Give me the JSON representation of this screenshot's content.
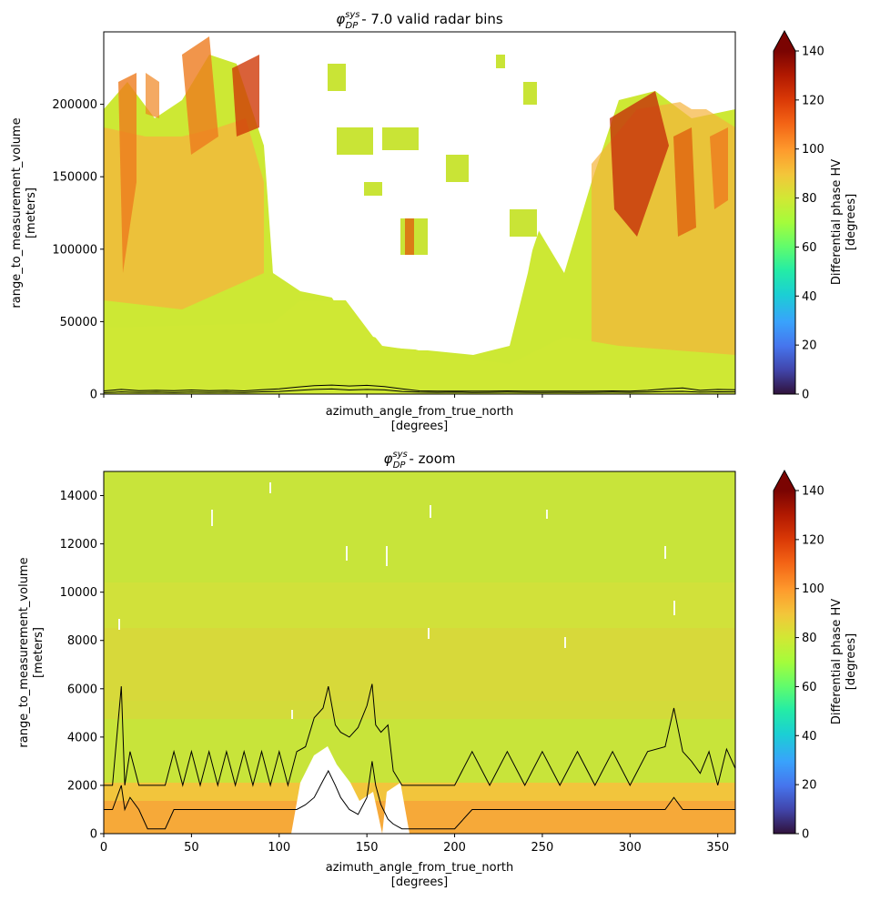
{
  "chart_data": [
    {
      "type": "heatmap",
      "title": "- 7.0 valid radar bins",
      "title_symbol": {
        "base": "φ",
        "sup": "sys",
        "sub": "DP"
      },
      "xlabel": "azimuth_angle_from_true_north",
      "xunits": "[degrees]",
      "ylabel": "range_to_measurement_volume",
      "yunits": "[meters]",
      "xlim": [
        0,
        360
      ],
      "ylim": [
        0,
        250000
      ],
      "xticks": [],
      "yticks": [
        0,
        50000,
        100000,
        150000,
        200000
      ],
      "colorbar": {
        "label": "Differential phase HV",
        "units": "[degrees]",
        "ticks": [
          0,
          20,
          40,
          60,
          80,
          100,
          120,
          140
        ],
        "range": [
          0,
          140
        ],
        "colormap": "turbo",
        "extend": "max"
      },
      "series": [
        {
          "x": [
            0,
            10,
            20,
            30,
            40,
            50,
            60,
            70,
            80,
            90,
            100,
            110,
            120,
            130,
            140,
            150,
            160,
            170,
            180,
            190,
            200,
            210,
            220,
            230,
            240,
            250,
            260,
            270,
            280,
            290,
            300,
            310,
            320,
            330,
            340,
            350,
            360
          ],
          "y": [
            1000,
            1500,
            1200,
            1300,
            1100,
            1400,
            1200,
            1300,
            1100,
            1600,
            1800,
            2500,
            3200,
            3500,
            2800,
            3200,
            2900,
            1800,
            1300,
            1200,
            1300,
            1100,
            1200,
            1300,
            1200,
            1100,
            1200,
            1100,
            1200,
            1300,
            1200,
            1400,
            1800,
            1900,
            1300,
            1600,
            1500
          ]
        },
        {
          "x": [
            0,
            10,
            20,
            30,
            40,
            50,
            60,
            70,
            80,
            90,
            100,
            110,
            120,
            130,
            140,
            150,
            160,
            170,
            180,
            190,
            200,
            210,
            220,
            230,
            240,
            250,
            260,
            270,
            280,
            290,
            300,
            310,
            320,
            330,
            340,
            350,
            360
          ],
          "y": [
            2200,
            3200,
            2400,
            2600,
            2300,
            2800,
            2400,
            2600,
            2200,
            3000,
            3600,
            4800,
            5800,
            6200,
            5600,
            6000,
            5200,
            3600,
            2200,
            2000,
            2100,
            2000,
            2100,
            2200,
            2100,
            2000,
            2100,
            2000,
            2100,
            2200,
            2000,
            2600,
            3600,
            4200,
            2600,
            3200,
            3000
          ]
        }
      ]
    },
    {
      "type": "heatmap",
      "title": "- zoom",
      "title_symbol": {
        "base": "φ",
        "sup": "sys",
        "sub": "DP"
      },
      "xlabel": "azimuth_angle_from_true_north",
      "xunits": "[degrees]",
      "ylabel": "range_to_measurement_volume",
      "yunits": "[meters]",
      "xlim": [
        0,
        360
      ],
      "ylim": [
        0,
        15000
      ],
      "xticks": [
        0,
        50,
        100,
        150,
        200,
        250,
        300,
        350
      ],
      "yticks": [
        0,
        2000,
        4000,
        6000,
        8000,
        10000,
        12000,
        14000
      ],
      "colorbar": {
        "label": "Differential phase HV",
        "units": "[degrees]",
        "ticks": [
          0,
          20,
          40,
          60,
          80,
          100,
          120,
          140
        ],
        "range": [
          0,
          140
        ],
        "colormap": "turbo",
        "extend": "max"
      },
      "series": [
        {
          "x": [
            0,
            5,
            10,
            12,
            15,
            20,
            25,
            30,
            35,
            40,
            45,
            50,
            55,
            60,
            65,
            70,
            75,
            80,
            85,
            90,
            95,
            100,
            105,
            110,
            115,
            120,
            125,
            128,
            132,
            135,
            140,
            145,
            150,
            153,
            155,
            158,
            162,
            165,
            170,
            175,
            180,
            190,
            200,
            210,
            220,
            230,
            240,
            250,
            260,
            270,
            280,
            290,
            300,
            310,
            320,
            325,
            330,
            335,
            340,
            345,
            350,
            355,
            360
          ],
          "y": [
            1000,
            1000,
            2000,
            1000,
            1500,
            1000,
            200,
            200,
            200,
            1000,
            1000,
            1000,
            1000,
            1000,
            1000,
            1000,
            1000,
            1000,
            1000,
            1000,
            1000,
            1000,
            1000,
            1000,
            1200,
            1500,
            2200,
            2600,
            2000,
            1500,
            1000,
            800,
            1500,
            3000,
            2000,
            1200,
            600,
            400,
            200,
            200,
            200,
            200,
            200,
            1000,
            1000,
            1000,
            1000,
            1000,
            1000,
            1000,
            1000,
            1000,
            1000,
            1000,
            1000,
            1500,
            1000,
            1000,
            1000,
            1000,
            1000,
            1000,
            1000
          ]
        },
        {
          "x": [
            0,
            5,
            10,
            12,
            15,
            20,
            25,
            30,
            35,
            40,
            45,
            50,
            55,
            60,
            65,
            70,
            75,
            80,
            85,
            90,
            95,
            100,
            105,
            110,
            115,
            120,
            125,
            128,
            132,
            135,
            140,
            145,
            150,
            153,
            155,
            158,
            162,
            165,
            170,
            175,
            180,
            190,
            200,
            210,
            220,
            230,
            240,
            250,
            260,
            270,
            280,
            290,
            300,
            310,
            320,
            325,
            330,
            335,
            340,
            345,
            350,
            355,
            360
          ],
          "y": [
            2000,
            2000,
            6100,
            2000,
            3400,
            2000,
            2000,
            2000,
            2000,
            3400,
            2000,
            3400,
            2000,
            3400,
            2000,
            3400,
            2000,
            3400,
            2000,
            3400,
            2000,
            3400,
            2000,
            3400,
            3600,
            4800,
            5200,
            6100,
            4500,
            4200,
            4000,
            4400,
            5300,
            6200,
            4500,
            4200,
            4500,
            2600,
            2000,
            2000,
            2000,
            2000,
            2000,
            3400,
            2000,
            3400,
            2000,
            3400,
            2000,
            3400,
            2000,
            3400,
            2000,
            3400,
            3600,
            5200,
            3400,
            3000,
            2500,
            3400,
            2000,
            3500,
            2700
          ]
        }
      ]
    }
  ]
}
